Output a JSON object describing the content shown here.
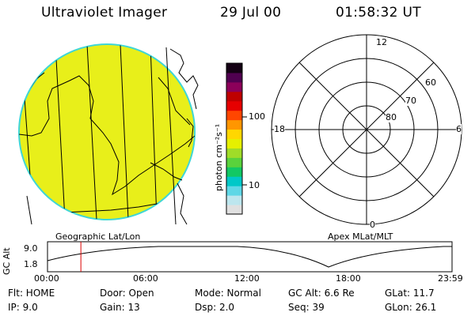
{
  "header": {
    "title": "Ultraviolet Imager",
    "date": "29 Jul 00",
    "time": "01:58:32 UT"
  },
  "colorbar": {
    "unit_label": "photon cm⁻²s⁻¹",
    "tick_100": "100",
    "tick_10": "10",
    "colors": [
      "#e0e0e0",
      "#bde6ee",
      "#5fd7e6",
      "#00c8c8",
      "#12c864",
      "#5ad23c",
      "#a0dc28",
      "#e6f000",
      "#ffd700",
      "#ff9600",
      "#ff4600",
      "#e60000",
      "#be0000",
      "#8c005a",
      "#500050",
      "#140014"
    ]
  },
  "polar": {
    "label_top": "12",
    "label_left": "18",
    "label_right": "6",
    "label_bottom": "0",
    "ring_labels": [
      "60",
      "70",
      "80"
    ]
  },
  "map_labels": {
    "left": "Geographic Lat/Lon",
    "right": "Apex MLat/MLT"
  },
  "timeline": {
    "ylabel": "GC Alt",
    "y_ticks": [
      "9.0",
      "1.8"
    ],
    "x_ticks": [
      "00:00",
      "06:00",
      "12:00",
      "18:00",
      "23:59"
    ],
    "current_fraction": 0.0825
  },
  "status": {
    "flt": "Flt:  HOME",
    "ip": "IP:  9.0",
    "door": "Door:  Open",
    "gain": "Gain:  13",
    "mode": "Mode:  Normal",
    "dsp": "Dsp:     2.0",
    "gc_alt": "GC Alt:  6.6 Re",
    "seq": "Seq:  39",
    "glat": "GLat:    11.7",
    "glon": "GLon:    26.1"
  },
  "colors": {
    "earth_fill": "#e8ef1a",
    "earth_rim": "#3fd6d6",
    "orbit_marker": "#dd0000"
  }
}
